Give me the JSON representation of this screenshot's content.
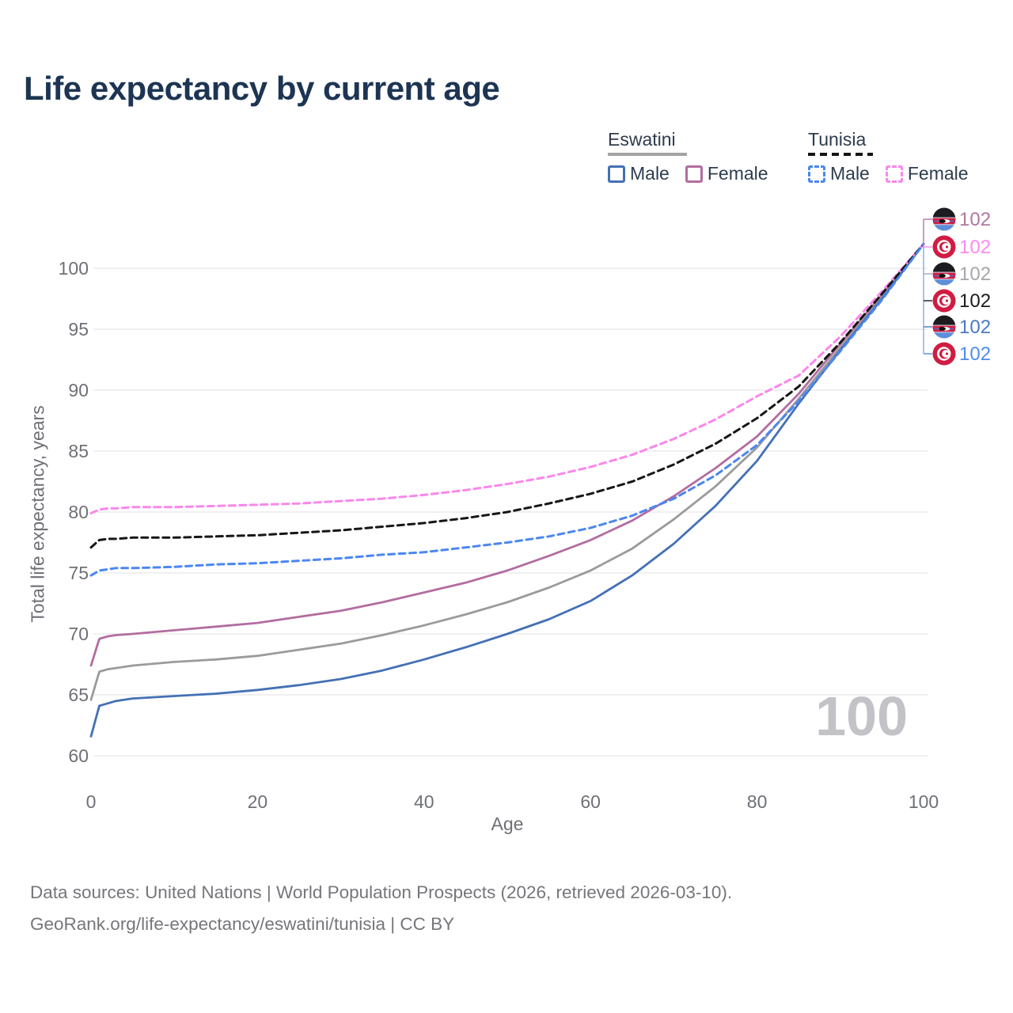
{
  "page": {
    "title": "Life expectancy by current age",
    "watermark": "100",
    "footer_line1": "Data sources: United Nations | World Population Prospects (2026, retrieved 2026-03-10).",
    "footer_line2": "GeoRank.org/life-expectancy/eswatini/tunisia | CC BY"
  },
  "legend": {
    "eswatini": {
      "label": "Eswatini",
      "male": "Male",
      "female": "Female"
    },
    "tunisia": {
      "label": "Tunisia",
      "male": "Male",
      "female": "Female"
    }
  },
  "axes": {
    "x_label": "Age",
    "y_label": "Total life expectancy, years",
    "x_ticks": [
      0,
      20,
      40,
      60,
      80,
      100
    ],
    "y_ticks": [
      60,
      65,
      70,
      75,
      80,
      85,
      90,
      95,
      100
    ]
  },
  "colors": {
    "title": "#1d3553",
    "axis_text": "#6e7076",
    "grid": "#ececee",
    "legend_text": "#2e3c4d",
    "eswatini_male": "#4470b5",
    "eswatini_female": "#b26d9f",
    "eswatini_both": "#9b9b9b",
    "tunisia_male": "#4b87f0",
    "tunisia_female": "#fb86ec",
    "tunisia_both": "#161616",
    "leader_top": "#b0779f",
    "leader_bottom": "#87a9e9",
    "watermark": "#c2c2c7",
    "footer_text": "#75767a",
    "flag_eswatini_black": "#1b1b20",
    "flag_eswatini_red": "#cf2045",
    "flag_eswatini_blue": "#5d8fd8",
    "flag_tunisia_red": "#d01c42"
  },
  "chart_data": {
    "type": "line",
    "title": "Life expectancy by current age",
    "xlabel": "Age",
    "ylabel": "Total life expectancy, years",
    "xlim": [
      0,
      100
    ],
    "ylim": [
      60,
      102.5
    ],
    "grid": "horizontal-only",
    "legend_position": "top-right",
    "x": [
      0,
      1,
      2,
      3,
      5,
      10,
      15,
      20,
      25,
      30,
      35,
      40,
      45,
      50,
      55,
      60,
      65,
      70,
      75,
      80,
      85,
      90,
      95,
      100
    ],
    "series": [
      {
        "name": "Eswatini Female",
        "country": "Eswatini",
        "sex": "Female",
        "color": "#b26d9f",
        "dash": false,
        "values": [
          67.4,
          69.6,
          69.8,
          69.9,
          70.0,
          70.3,
          70.6,
          70.9,
          71.4,
          71.9,
          72.6,
          73.4,
          74.2,
          75.2,
          76.4,
          77.7,
          79.3,
          81.3,
          83.6,
          86.2,
          89.7,
          93.8,
          97.8,
          102
        ]
      },
      {
        "name": "Eswatini Both sexes",
        "country": "Eswatini",
        "sex": "Both",
        "color": "#9b9b9b",
        "dash": false,
        "values": [
          64.6,
          66.9,
          67.1,
          67.2,
          67.4,
          67.7,
          67.9,
          68.2,
          68.7,
          69.2,
          69.9,
          70.7,
          71.6,
          72.6,
          73.8,
          75.2,
          77.0,
          79.4,
          82.1,
          85.3,
          89.3,
          93.5,
          97.6,
          102
        ]
      },
      {
        "name": "Eswatini Male",
        "country": "Eswatini",
        "sex": "Male",
        "color": "#4470b5",
        "dash": false,
        "values": [
          61.6,
          64.1,
          64.3,
          64.5,
          64.7,
          64.9,
          65.1,
          65.4,
          65.8,
          66.3,
          67.0,
          67.9,
          68.9,
          70.0,
          71.2,
          72.7,
          74.8,
          77.4,
          80.5,
          84.2,
          88.9,
          93.3,
          97.5,
          102
        ]
      },
      {
        "name": "Tunisia Female",
        "country": "Tunisia",
        "sex": "Female",
        "color": "#fb86ec",
        "dash": true,
        "values": [
          79.9,
          80.2,
          80.3,
          80.3,
          80.4,
          80.4,
          80.5,
          80.6,
          80.7,
          80.9,
          81.1,
          81.4,
          81.8,
          82.3,
          82.9,
          83.7,
          84.7,
          86.0,
          87.6,
          89.5,
          91.2,
          94.4,
          98.1,
          102
        ]
      },
      {
        "name": "Tunisia Both sexes",
        "country": "Tunisia",
        "sex": "Both",
        "color": "#161616",
        "dash": true,
        "values": [
          77.1,
          77.7,
          77.8,
          77.8,
          77.9,
          77.9,
          78.0,
          78.1,
          78.3,
          78.5,
          78.8,
          79.1,
          79.5,
          80.0,
          80.7,
          81.5,
          82.5,
          83.9,
          85.6,
          87.7,
          90.3,
          93.9,
          97.9,
          102
        ]
      },
      {
        "name": "Tunisia Male",
        "country": "Tunisia",
        "sex": "Male",
        "color": "#4b87f0",
        "dash": true,
        "values": [
          74.8,
          75.2,
          75.3,
          75.4,
          75.4,
          75.5,
          75.7,
          75.8,
          76.0,
          76.2,
          76.5,
          76.7,
          77.1,
          77.5,
          78.0,
          78.7,
          79.7,
          81.1,
          83.0,
          85.5,
          89.1,
          93.2,
          97.4,
          102
        ]
      }
    ],
    "end_labels": [
      {
        "flag": "eswatini",
        "series": "Eswatini Female",
        "value": "102",
        "color": "#b0779f"
      },
      {
        "flag": "tunisia",
        "series": "Tunisia Female",
        "value": "102",
        "color": "#fc8af0"
      },
      {
        "flag": "eswatini",
        "series": "Eswatini Both sexes",
        "value": "102",
        "color": "#a7a7ab"
      },
      {
        "flag": "tunisia",
        "series": "Tunisia Both sexes",
        "value": "102",
        "color": "#1c1c1c"
      },
      {
        "flag": "eswatini",
        "series": "Eswatini Male",
        "value": "102",
        "color": "#4b79c0"
      },
      {
        "flag": "tunisia",
        "series": "Tunisia Male",
        "value": "102",
        "color": "#4f8cf2"
      }
    ]
  }
}
